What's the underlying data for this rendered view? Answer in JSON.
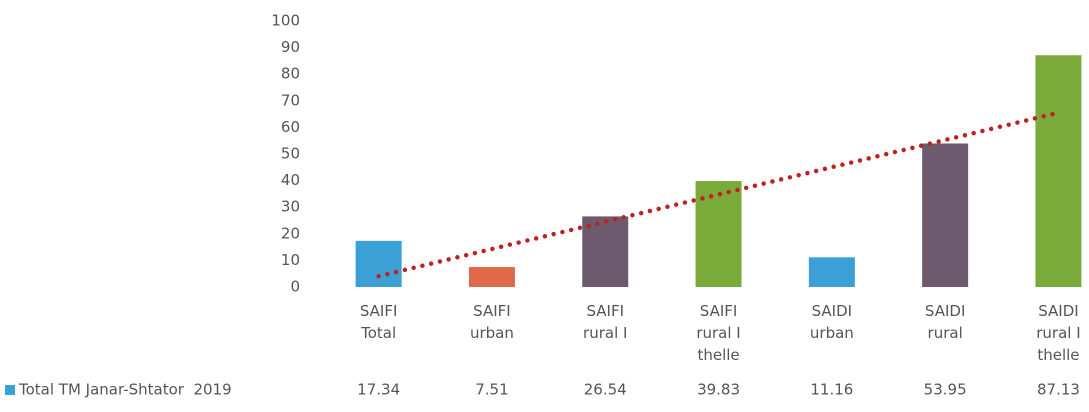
{
  "chart_data": {
    "type": "bar",
    "categories": [
      "SAIFI Total",
      "SAIFI urban",
      "SAIFI rural I",
      "SAIFI rural I thelle",
      "SAIDI urban",
      "SAIDI rural",
      "SAIDI rural I thelle"
    ],
    "series": [
      {
        "name": "Total TM Janar-Shtator  2019",
        "color": "#3ba0d6",
        "values": [
          17.34,
          7.51,
          26.54,
          39.83,
          11.16,
          53.95,
          87.13
        ]
      }
    ],
    "colors": [
      "#3ba0d6",
      "#e0694a",
      "#6d5a6e",
      "#7aab3a",
      "#3ba0d6",
      "#6d5a6e",
      "#7aab3a"
    ],
    "ylim": [
      0,
      100
    ],
    "yticks": [
      0,
      10,
      20,
      30,
      40,
      50,
      60,
      70,
      80,
      90,
      100
    ],
    "trendline": "linear",
    "trendline_color": "#c0211f",
    "grid": false
  }
}
